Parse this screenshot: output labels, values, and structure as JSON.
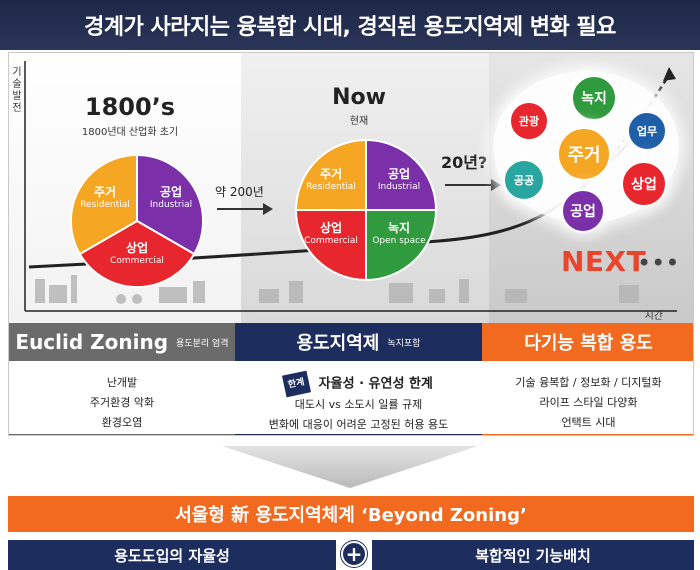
{
  "title": "경계가 사라지는 융복합 시대, 경직된 용도지역제 변화 필요",
  "axes": {
    "y_label": "기술발전",
    "x_label": "시간"
  },
  "eras": [
    {
      "heading": "1800’s",
      "subheading": "1800년대 산업화 초기",
      "pie": [
        {
          "ko": "주거",
          "en": "Residential",
          "color": "#f5a623"
        },
        {
          "ko": "공업",
          "en": "Industrial",
          "color": "#7b2fa8"
        },
        {
          "ko": "상업",
          "en": "Commercial",
          "color": "#e8262d"
        }
      ]
    },
    {
      "heading": "Now",
      "subheading": "현재",
      "pie": [
        {
          "ko": "주거",
          "en": "Residential",
          "color": "#f5a623"
        },
        {
          "ko": "공업",
          "en": "Industrial",
          "color": "#7b2fa8"
        },
        {
          "ko": "상업",
          "en": "Commercial",
          "color": "#e8262d"
        },
        {
          "ko": "녹지",
          "en": "Open space",
          "color": "#2f9a3e"
        }
      ]
    },
    {
      "heading": "NEXT",
      "dots": "•••",
      "bubbles": [
        {
          "label": "녹지",
          "color": "#2f9a3e"
        },
        {
          "label": "관광",
          "color": "#e8262d"
        },
        {
          "label": "업무",
          "color": "#1f5fa8"
        },
        {
          "label": "주거",
          "color": "#f5a623"
        },
        {
          "label": "공공",
          "color": "#2aa6a0"
        },
        {
          "label": "상업",
          "color": "#e8262d"
        },
        {
          "label": "공업",
          "color": "#7b2fa8"
        }
      ]
    }
  ],
  "transitions": {
    "first": "약 200년",
    "second": "20년?"
  },
  "categories": [
    {
      "title": "Euclid Zoning",
      "subtitle": "용도분리 엄격",
      "items": [
        "난개발",
        "주거환경 악화",
        "환경오염"
      ]
    },
    {
      "title": "용도지역제",
      "subtitle": "녹지포함",
      "badge": "한계",
      "items": [
        "자율성 · 유연성 한계",
        "대도시 vs 소도시 일률 규제",
        "변화에 대응이 어려운 고정된 허용 용도"
      ]
    },
    {
      "title": "다기능 복합 용도",
      "subtitle": "",
      "items": [
        "기술 융복합 / 정보화 / 디지털화",
        "라이프 스타일 다양화",
        "언택트 시대"
      ]
    }
  ],
  "beyond": "서울형 新 용도지역체계  ‘Beyond Zoning’",
  "pillars": {
    "left": "용도도입의 자율성",
    "plus": "+",
    "right": "복합적인 기능배치"
  },
  "colors": {
    "navy": "#1c2d5e",
    "orange": "#f26a1f",
    "gray": "#6b6b6b"
  }
}
